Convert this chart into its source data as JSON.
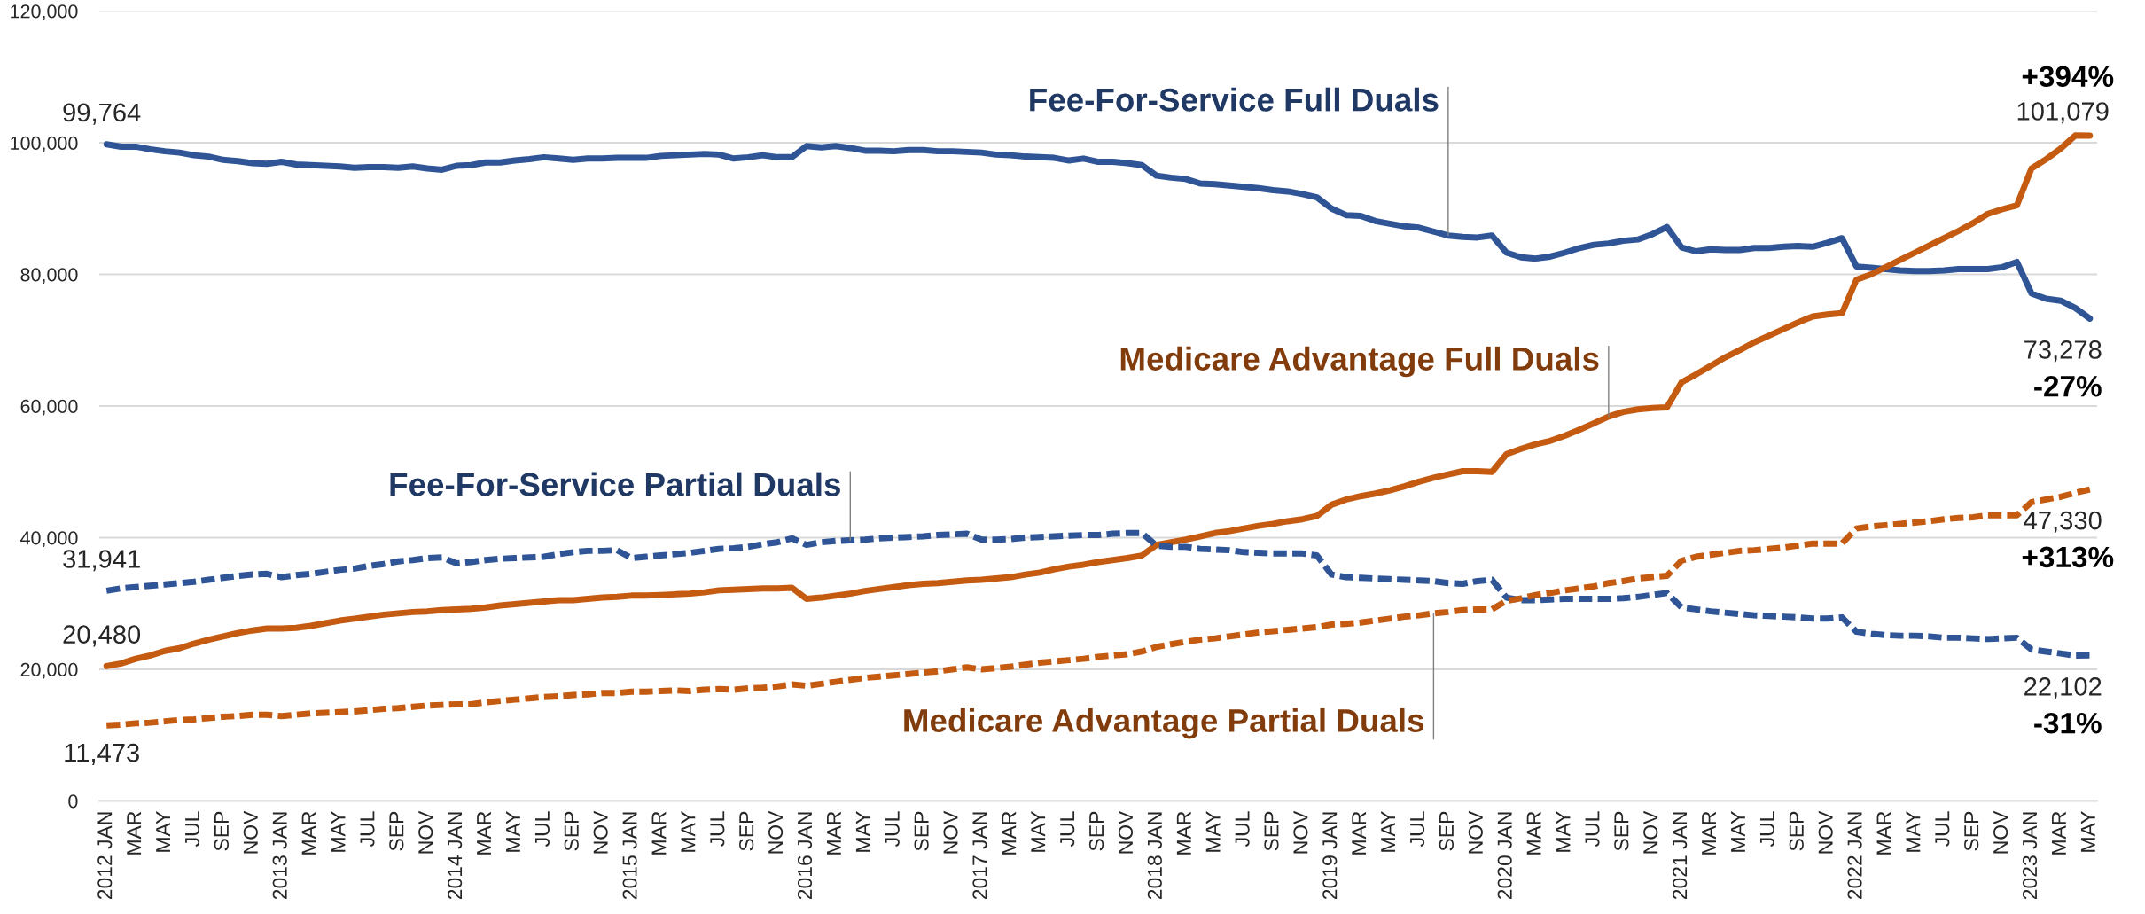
{
  "chart_data": {
    "type": "line",
    "categories": [
      "2012 JAN",
      null,
      "MAR",
      null,
      "MAY",
      null,
      "JUL",
      null,
      "SEP",
      null,
      "NOV",
      null,
      "2013 JAN",
      null,
      "MAR",
      null,
      "MAY",
      null,
      "JUL",
      null,
      "SEP",
      null,
      "NOV",
      null,
      "2014 JAN",
      null,
      "MAR",
      null,
      "MAY",
      null,
      "JUL",
      null,
      "SEP",
      null,
      "NOV",
      null,
      "2015 JAN",
      null,
      "MAR",
      null,
      "MAY",
      null,
      "JUL",
      null,
      "SEP",
      null,
      "NOV",
      null,
      "2016 JAN",
      null,
      "MAR",
      null,
      "MAY",
      null,
      "JUL",
      null,
      "SEP",
      null,
      "NOV",
      null,
      "2017 JAN",
      null,
      "MAR",
      null,
      "MAY",
      null,
      "JUL",
      null,
      "SEP",
      null,
      "NOV",
      null,
      "2018 JAN",
      null,
      "MAR",
      null,
      "MAY",
      null,
      "JUL",
      null,
      "SEP",
      null,
      "NOV",
      null,
      "2019 JAN",
      null,
      "MAR",
      null,
      "MAY",
      null,
      "JUL",
      null,
      "SEP",
      null,
      "NOV",
      null,
      "2020 JAN",
      null,
      "MAR",
      null,
      "MAY",
      null,
      "JUL",
      null,
      "SEP",
      null,
      "NOV",
      null,
      "2021 JAN",
      null,
      "MAR",
      null,
      "MAY",
      null,
      "JUL",
      null,
      "SEP",
      null,
      "NOV",
      null,
      "2022 JAN",
      null,
      "MAR",
      null,
      "MAY",
      null,
      "JUL",
      null,
      "SEP",
      null,
      "NOV",
      null,
      "2023 JAN",
      null,
      "MAR",
      null,
      "MAY"
    ],
    "series": [
      {
        "name": "Fee-For-Service Full Duals",
        "color": "#2f5597",
        "line_style": "solid",
        "values": [
          99764,
          99400,
          99400,
          99000,
          98700,
          98500,
          98100,
          97900,
          97400,
          97200,
          96900,
          96800,
          97100,
          96700,
          96600,
          96500,
          96400,
          96200,
          96300,
          96300,
          96200,
          96400,
          96100,
          95900,
          96500,
          96600,
          97000,
          97000,
          97300,
          97500,
          97800,
          97600,
          97400,
          97600,
          97600,
          97700,
          97700,
          97700,
          98000,
          98100,
          98200,
          98300,
          98200,
          97600,
          97800,
          98100,
          97800,
          97800,
          99500,
          99300,
          99500,
          99200,
          98800,
          98800,
          98700,
          98900,
          98900,
          98700,
          98700,
          98600,
          98500,
          98200,
          98100,
          97900,
          97800,
          97700,
          97300,
          97600,
          97100,
          97100,
          96900,
          96600,
          95000,
          94700,
          94500,
          93800,
          93700,
          93500,
          93300,
          93100,
          92800,
          92600,
          92200,
          91700,
          90000,
          89000,
          88900,
          88100,
          87700,
          87300,
          87100,
          86500,
          85900,
          85700,
          85600,
          85900,
          83300,
          82600,
          82400,
          82700,
          83300,
          84000,
          84500,
          84700,
          85100,
          85300,
          86100,
          87200,
          84100,
          83500,
          83800,
          83700,
          83700,
          84000,
          84000,
          84200,
          84300,
          84200,
          84800,
          85500,
          81200,
          81000,
          80800,
          80600,
          80500,
          80500,
          80600,
          80800,
          80800,
          80800,
          81100,
          81900,
          77100,
          76300,
          76000,
          74900,
          73278
        ],
        "value_labels": [
          "99,764",
          null,
          null,
          null,
          null,
          null,
          null,
          null,
          null,
          null,
          null,
          null,
          null,
          null,
          null,
          null,
          null,
          null,
          null,
          null,
          null,
          null,
          null,
          null,
          null,
          null,
          null,
          null,
          null,
          null,
          null,
          null,
          null,
          null,
          null,
          null,
          null,
          null,
          null,
          null,
          null,
          null,
          null,
          null,
          null,
          null,
          null,
          null,
          null,
          null,
          null,
          null,
          null,
          null,
          null,
          null,
          null,
          null,
          null,
          null,
          null,
          null,
          null,
          null,
          null,
          null,
          null,
          null,
          null,
          null,
          null,
          null,
          null,
          null,
          null,
          null,
          null,
          null,
          null,
          null,
          null,
          null,
          null,
          null,
          null,
          null,
          null,
          null,
          null,
          null,
          null,
          null,
          null,
          null,
          null,
          null,
          null,
          null,
          null,
          null,
          null,
          null,
          null,
          null,
          null,
          null,
          null,
          null,
          null,
          null,
          null,
          null,
          null,
          null,
          null,
          null,
          null,
          null,
          null,
          null,
          null,
          null,
          null,
          null,
          null,
          null,
          null,
          null,
          null,
          null,
          null,
          null,
          null,
          null,
          null,
          null,
          "73,278"
        ]
      },
      {
        "name": "Medicare Advantage Full Duals",
        "color": "#c55a11",
        "line_style": "solid",
        "values": [
          20480,
          20900,
          21600,
          22100,
          22800,
          23200,
          23900,
          24500,
          25000,
          25500,
          25900,
          26200,
          26200,
          26300,
          26600,
          27000,
          27400,
          27700,
          28000,
          28300,
          28500,
          28700,
          28800,
          29000,
          29100,
          29200,
          29400,
          29700,
          29900,
          30100,
          30300,
          30500,
          30500,
          30700,
          30900,
          31000,
          31200,
          31200,
          31300,
          31400,
          31500,
          31700,
          32000,
          32100,
          32200,
          32300,
          32300,
          32400,
          30700,
          30900,
          31200,
          31500,
          31900,
          32200,
          32500,
          32800,
          33000,
          33100,
          33300,
          33500,
          33600,
          33800,
          34000,
          34400,
          34700,
          35200,
          35600,
          35900,
          36300,
          36600,
          36900,
          37300,
          38900,
          39300,
          39700,
          40200,
          40700,
          41000,
          41400,
          41800,
          42100,
          42500,
          42800,
          43300,
          45000,
          45800,
          46300,
          46700,
          47200,
          47800,
          48500,
          49100,
          49600,
          50100,
          50100,
          50000,
          52700,
          53500,
          54200,
          54700,
          55500,
          56400,
          57400,
          58400,
          59100,
          59500,
          59700,
          59800,
          63600,
          64800,
          66100,
          67400,
          68500,
          69700,
          70700,
          71700,
          72700,
          73600,
          73900,
          74100,
          79200,
          80000,
          81100,
          82200,
          83300,
          84400,
          85500,
          86600,
          87800,
          89200,
          89900,
          90500,
          96100,
          97500,
          99100,
          101100,
          101079
        ],
        "value_labels": [
          "20,480",
          null,
          null,
          null,
          null,
          null,
          null,
          null,
          null,
          null,
          null,
          null,
          null,
          null,
          null,
          null,
          null,
          null,
          null,
          null,
          null,
          null,
          null,
          null,
          null,
          null,
          null,
          null,
          null,
          null,
          null,
          null,
          null,
          null,
          null,
          null,
          null,
          null,
          null,
          null,
          null,
          null,
          null,
          null,
          null,
          null,
          null,
          null,
          null,
          null,
          null,
          null,
          null,
          null,
          null,
          null,
          null,
          null,
          null,
          null,
          null,
          null,
          null,
          null,
          null,
          null,
          null,
          null,
          null,
          null,
          null,
          null,
          null,
          null,
          null,
          null,
          null,
          null,
          null,
          null,
          null,
          null,
          null,
          null,
          null,
          null,
          null,
          null,
          null,
          null,
          null,
          null,
          null,
          null,
          null,
          null,
          null,
          null,
          null,
          null,
          null,
          null,
          null,
          null,
          null,
          null,
          null,
          null,
          null,
          null,
          null,
          null,
          null,
          null,
          null,
          null,
          null,
          null,
          null,
          null,
          null,
          null,
          null,
          null,
          null,
          null,
          null,
          null,
          null,
          null,
          null,
          null,
          null,
          null,
          null,
          null,
          "101,079"
        ]
      },
      {
        "name": "Fee-For-Service Partial Duals",
        "color": "#2f5597",
        "line_style": "dashed",
        "values": [
          31941,
          32300,
          32500,
          32700,
          32900,
          33100,
          33300,
          33600,
          33900,
          34200,
          34400,
          34500,
          34000,
          34300,
          34500,
          34800,
          35100,
          35300,
          35700,
          36000,
          36400,
          36600,
          36900,
          37000,
          36100,
          36300,
          36600,
          36800,
          36900,
          37000,
          37100,
          37500,
          37800,
          38000,
          38000,
          38100,
          36900,
          37100,
          37300,
          37500,
          37700,
          38000,
          38300,
          38400,
          38600,
          39000,
          39300,
          39900,
          38900,
          39300,
          39500,
          39600,
          39700,
          39900,
          40000,
          40100,
          40200,
          40400,
          40500,
          40600,
          39700,
          39700,
          39800,
          40000,
          40100,
          40200,
          40300,
          40400,
          40400,
          40600,
          40700,
          40700,
          38800,
          38600,
          38600,
          38300,
          38200,
          38100,
          37800,
          37700,
          37600,
          37600,
          37600,
          37300,
          34400,
          34000,
          33900,
          33800,
          33700,
          33600,
          33500,
          33400,
          33100,
          33000,
          33400,
          33600,
          30900,
          30500,
          30500,
          30600,
          30700,
          30700,
          30700,
          30700,
          30800,
          31000,
          31300,
          31600,
          29400,
          29100,
          28800,
          28600,
          28400,
          28200,
          28100,
          28000,
          27900,
          27700,
          27700,
          27900,
          25700,
          25400,
          25200,
          25100,
          25100,
          25000,
          24800,
          24800,
          24700,
          24600,
          24700,
          24800,
          23000,
          22700,
          22400,
          22100,
          22102
        ],
        "value_labels": [
          "31,941",
          null,
          null,
          null,
          null,
          null,
          null,
          null,
          null,
          null,
          null,
          null,
          null,
          null,
          null,
          null,
          null,
          null,
          null,
          null,
          null,
          null,
          null,
          null,
          null,
          null,
          null,
          null,
          null,
          null,
          null,
          null,
          null,
          null,
          null,
          null,
          null,
          null,
          null,
          null,
          null,
          null,
          null,
          null,
          null,
          null,
          null,
          null,
          null,
          null,
          null,
          null,
          null,
          null,
          null,
          null,
          null,
          null,
          null,
          null,
          null,
          null,
          null,
          null,
          null,
          null,
          null,
          null,
          null,
          null,
          null,
          null,
          null,
          null,
          null,
          null,
          null,
          null,
          null,
          null,
          null,
          null,
          null,
          null,
          null,
          null,
          null,
          null,
          null,
          null,
          null,
          null,
          null,
          null,
          null,
          null,
          null,
          null,
          null,
          null,
          null,
          null,
          null,
          null,
          null,
          null,
          null,
          null,
          null,
          null,
          null,
          null,
          null,
          null,
          null,
          null,
          null,
          null,
          null,
          null,
          null,
          null,
          null,
          null,
          null,
          null,
          null,
          null,
          null,
          null,
          null,
          null,
          null,
          null,
          null,
          null,
          "22,102"
        ]
      },
      {
        "name": "Medicare Advantage Partial Duals",
        "color": "#c55a11",
        "line_style": "dashed",
        "values": [
          11473,
          11600,
          11800,
          11900,
          12100,
          12300,
          12400,
          12600,
          12800,
          12900,
          13100,
          13100,
          12900,
          13100,
          13300,
          13400,
          13500,
          13600,
          13800,
          14000,
          14100,
          14300,
          14500,
          14600,
          14700,
          14700,
          15000,
          15200,
          15400,
          15600,
          15800,
          15900,
          16100,
          16200,
          16400,
          16400,
          16600,
          16600,
          16700,
          16800,
          16700,
          16900,
          17000,
          16900,
          17100,
          17200,
          17400,
          17700,
          17500,
          17800,
          18100,
          18400,
          18700,
          18900,
          19100,
          19300,
          19500,
          19700,
          20000,
          20300,
          20000,
          20200,
          20400,
          20700,
          21000,
          21200,
          21400,
          21600,
          21900,
          22100,
          22300,
          22700,
          23400,
          23800,
          24200,
          24500,
          24700,
          25000,
          25300,
          25600,
          25800,
          26000,
          26200,
          26400,
          26800,
          26900,
          27100,
          27400,
          27700,
          28000,
          28200,
          28500,
          28700,
          29000,
          29100,
          29100,
          30400,
          30800,
          31300,
          31600,
          32000,
          32300,
          32600,
          33100,
          33400,
          33800,
          34000,
          34200,
          36500,
          37100,
          37400,
          37700,
          38000,
          38100,
          38300,
          38500,
          38800,
          39100,
          39100,
          39100,
          41400,
          41700,
          41900,
          42100,
          42300,
          42500,
          42800,
          43000,
          43100,
          43400,
          43400,
          43400,
          45400,
          45800,
          46200,
          46800,
          47330
        ],
        "value_labels": [
          "11,473",
          null,
          null,
          null,
          null,
          null,
          null,
          null,
          null,
          null,
          null,
          null,
          null,
          null,
          null,
          null,
          null,
          null,
          null,
          null,
          null,
          null,
          null,
          null,
          null,
          null,
          null,
          null,
          null,
          null,
          null,
          null,
          null,
          null,
          null,
          null,
          null,
          null,
          null,
          null,
          null,
          null,
          null,
          null,
          null,
          null,
          null,
          null,
          null,
          null,
          null,
          null,
          null,
          null,
          null,
          null,
          null,
          null,
          null,
          null,
          null,
          null,
          null,
          null,
          null,
          null,
          null,
          null,
          null,
          null,
          null,
          null,
          null,
          null,
          null,
          null,
          null,
          null,
          null,
          null,
          null,
          null,
          null,
          null,
          null,
          null,
          null,
          null,
          null,
          null,
          null,
          null,
          null,
          null,
          null,
          null,
          null,
          null,
          null,
          null,
          null,
          null,
          null,
          null,
          null,
          null,
          null,
          null,
          null,
          null,
          null,
          null,
          null,
          null,
          null,
          null,
          null,
          null,
          null,
          null,
          null,
          null,
          null,
          null,
          null,
          null,
          null,
          null,
          null,
          null,
          null,
          null,
          null,
          null,
          null,
          null,
          "47,330"
        ]
      }
    ],
    "ylim": [
      0,
      120000
    ],
    "yticks": [
      0,
      {
        "value": 20000,
        "label": "20,000"
      },
      {
        "value": 40000,
        "label": "40,000"
      },
      {
        "value": 60000,
        "label": "60,000"
      },
      {
        "value": 80000,
        "label": "80,000"
      },
      {
        "value": 100000,
        "label": "100,000"
      },
      {
        "value": 120000,
        "label": "120,000"
      }
    ],
    "grid": "y",
    "marker": "none",
    "annotations": [
      "-27%",
      "+394%",
      "-31%",
      "+313%"
    ]
  }
}
